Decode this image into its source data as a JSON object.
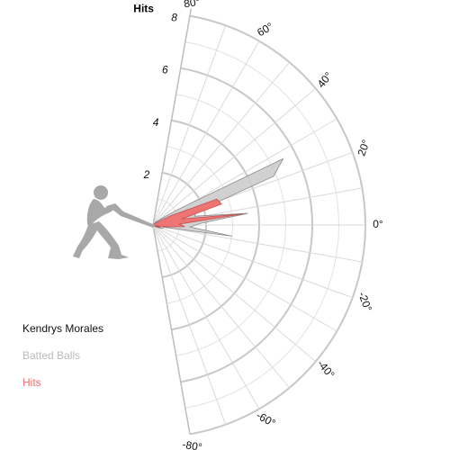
{
  "chart_data": {
    "type": "radar",
    "player": "Kendrys Morales",
    "radial_axis": {
      "title": "Hits",
      "ticks": [
        "2",
        "4",
        "6",
        "8"
      ],
      "range": [
        0,
        8
      ]
    },
    "angle_axis": {
      "ticks": [
        "80°",
        "60°",
        "40°",
        "20°",
        "0°",
        "-20°",
        "-40°",
        "-60°",
        "-80°"
      ]
    },
    "series": [
      {
        "name": "Batted Balls",
        "color": "#cccccc",
        "points": [
          {
            "angle": -33,
            "value": 0.1
          },
          {
            "angle": -28,
            "value": 0.2
          },
          {
            "angle": -23,
            "value": 0.3
          },
          {
            "angle": -17,
            "value": 0.4
          },
          {
            "angle": -12,
            "value": 0.4
          },
          {
            "angle": -8,
            "value": 3.0
          },
          {
            "angle": -3,
            "value": 1.4
          },
          {
            "angle": 2,
            "value": 1.8
          },
          {
            "angle": 7,
            "value": 3.6
          },
          {
            "angle": 12,
            "value": 1.6
          },
          {
            "angle": 17,
            "value": 1.7
          },
          {
            "angle": 22,
            "value": 4.9
          },
          {
            "angle": 27,
            "value": 5.5
          },
          {
            "angle": 32,
            "value": 1.1
          },
          {
            "angle": 37,
            "value": 0.4
          },
          {
            "angle": 42,
            "value": 0.2
          },
          {
            "angle": 47,
            "value": 0.2
          }
        ]
      },
      {
        "name": "Hits",
        "color": "#f07070",
        "points": [
          {
            "angle": -33,
            "value": 0.0
          },
          {
            "angle": -28,
            "value": 0.1
          },
          {
            "angle": -23,
            "value": 0.2
          },
          {
            "angle": -17,
            "value": 0.3
          },
          {
            "angle": -12,
            "value": 0.1
          },
          {
            "angle": -8,
            "value": 0.5
          },
          {
            "angle": -3,
            "value": 1.2
          },
          {
            "angle": 2,
            "value": 1.0
          },
          {
            "angle": 7,
            "value": 3.4
          },
          {
            "angle": 12,
            "value": 1.1
          },
          {
            "angle": 17,
            "value": 2.7
          },
          {
            "angle": 22,
            "value": 2.6
          },
          {
            "angle": 27,
            "value": 0.8
          },
          {
            "angle": 32,
            "value": 0.3
          },
          {
            "angle": 37,
            "value": 0.1
          },
          {
            "angle": 42,
            "value": 0.0
          },
          {
            "angle": 47,
            "value": 0.0
          }
        ]
      }
    ]
  }
}
